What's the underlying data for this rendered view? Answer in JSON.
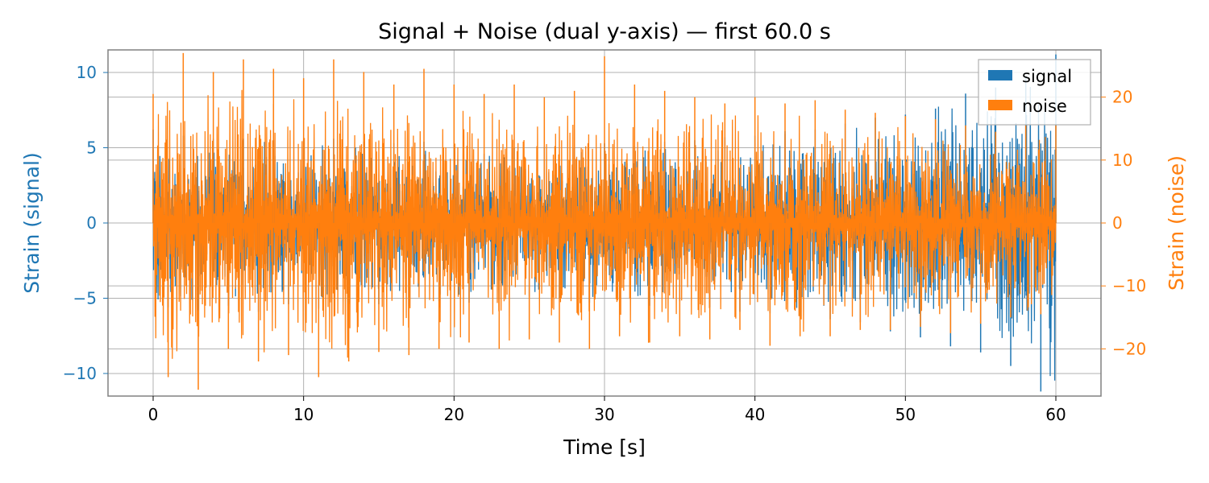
{
  "chart_data": {
    "type": "line",
    "title": "Signal + Noise (dual y-axis) — first 60.0 s",
    "xlabel": "Time [s]",
    "ylabel_left": "Strain (signal)",
    "ylabel_right": "Strain (noise)",
    "xlim": [
      -3,
      63
    ],
    "ylim_left": [
      -11.5,
      11.5
    ],
    "ylim_right": [
      -27.5,
      27.5
    ],
    "x_ticks": [
      0,
      10,
      20,
      30,
      40,
      50,
      60
    ],
    "x_tick_labels": [
      "0",
      "10",
      "20",
      "30",
      "40",
      "50",
      "60"
    ],
    "y_left_ticks": [
      -10,
      -5,
      0,
      5,
      10
    ],
    "y_left_tick_labels": [
      "−10",
      "−5",
      "0",
      "5",
      "10"
    ],
    "y_right_ticks": [
      -20,
      -10,
      0,
      10,
      20
    ],
    "y_right_tick_labels": [
      "−20",
      "−10",
      "0",
      "10",
      "20"
    ],
    "grid": true,
    "legend_position": "top-right",
    "series": [
      {
        "name": "signal",
        "axis": "left",
        "color": "#1f77b4",
        "x": [
          0,
          1,
          2,
          3,
          4,
          5,
          6,
          7,
          8,
          9,
          10,
          11,
          12,
          13,
          14,
          15,
          16,
          17,
          18,
          19,
          20,
          21,
          22,
          23,
          24,
          25,
          26,
          27,
          28,
          29,
          30,
          31,
          32,
          33,
          34,
          35,
          36,
          37,
          38,
          39,
          40,
          41,
          42,
          43,
          44,
          45,
          46,
          47,
          48,
          49,
          50,
          51,
          52,
          53,
          54,
          55,
          56,
          57,
          58,
          59,
          60
        ],
        "y": [
          6.2,
          -5.6,
          5.8,
          -5.8,
          5.6,
          -5.5,
          5.6,
          -5.9,
          5.5,
          -5.4,
          5.5,
          -5.7,
          5.6,
          -5.3,
          5.4,
          -5.4,
          5.3,
          -5.5,
          5.4,
          -5.2,
          5.2,
          -5.3,
          4.6,
          -5.1,
          5.0,
          -4.9,
          5.1,
          -5.0,
          5.0,
          -5.3,
          5.3,
          -5.0,
          5.1,
          -5.5,
          5.4,
          -5.2,
          5.5,
          -5.6,
          5.7,
          -5.9,
          5.8,
          -6.0,
          6.1,
          -6.2,
          6.2,
          -6.4,
          6.6,
          -6.6,
          7.0,
          -7.2,
          7.2,
          -7.6,
          7.6,
          -8.2,
          8.6,
          -8.6,
          9.0,
          -9.5,
          9.8,
          -11.2,
          11.2
        ],
        "envelope_upper": [
          6.2,
          6.0,
          5.9,
          5.8,
          5.7,
          5.7,
          5.6,
          5.6,
          5.5,
          5.5,
          5.5,
          5.5,
          5.5,
          5.4,
          5.4,
          5.4,
          5.3,
          5.3,
          5.3,
          5.2,
          5.2,
          5.2,
          5.1,
          5.1,
          5.1,
          5.1,
          5.1,
          5.1,
          5.1,
          5.2,
          5.2,
          5.3,
          5.3,
          5.4,
          5.4,
          5.5,
          5.5,
          5.6,
          5.7,
          5.8,
          5.9,
          6.0,
          6.1,
          6.2,
          6.3,
          6.4,
          6.6,
          6.8,
          7.0,
          7.2,
          7.4,
          7.6,
          7.9,
          8.2,
          8.5,
          8.8,
          9.1,
          9.4,
          9.8,
          10.5,
          11.2
        ]
      },
      {
        "name": "noise",
        "axis": "right",
        "color": "#ff7f0e",
        "x": [
          0,
          1,
          2,
          3,
          4,
          5,
          6,
          7,
          8,
          9,
          10,
          11,
          12,
          13,
          14,
          15,
          16,
          17,
          18,
          19,
          20,
          21,
          22,
          23,
          24,
          25,
          26,
          27,
          28,
          29,
          30,
          31,
          32,
          33,
          34,
          35,
          36,
          37,
          38,
          39,
          40,
          41,
          42,
          43,
          44,
          45,
          46,
          47,
          48,
          49,
          50,
          51,
          52,
          53,
          54,
          55,
          56,
          57,
          58,
          59,
          60
        ],
        "y": [
          20.5,
          -24.5,
          27.0,
          -26.5,
          24.0,
          -20.0,
          26.0,
          -22.0,
          24.5,
          -21.0,
          23.0,
          -24.5,
          26.0,
          -22.0,
          24.0,
          -20.5,
          22.0,
          -21.0,
          24.5,
          -20.0,
          22.0,
          -19.0,
          20.5,
          -20.0,
          22.0,
          -18.5,
          20.0,
          -19.0,
          21.0,
          -20.0,
          26.5,
          -18.0,
          22.0,
          -19.0,
          21.0,
          -18.0,
          20.0,
          -18.5,
          19.0,
          -17.0,
          20.0,
          -19.5,
          19.0,
          -18.0,
          19.5,
          -18.0,
          18.0,
          -17.0,
          17.5,
          -17.0,
          17.0,
          -16.5,
          16.5,
          -17.5,
          15.5,
          -16.0,
          14.5,
          -15.0,
          15.5,
          -14.5,
          15.5
        ],
        "envelope_upper": [
          25.0,
          24.8,
          24.6,
          24.4,
          24.2,
          24.0,
          23.8,
          23.6,
          23.4,
          23.2,
          23.0,
          22.8,
          22.6,
          22.4,
          22.2,
          22.0,
          21.8,
          21.6,
          21.4,
          21.2,
          21.0,
          20.8,
          20.6,
          20.4,
          20.2,
          20.0,
          19.9,
          19.8,
          19.7,
          19.6,
          19.5,
          19.4,
          19.3,
          19.2,
          19.1,
          19.0,
          18.9,
          18.8,
          18.7,
          18.6,
          18.5,
          18.3,
          18.1,
          17.9,
          17.7,
          17.5,
          17.3,
          17.1,
          16.9,
          16.7,
          16.5,
          16.3,
          16.1,
          15.9,
          15.7,
          15.5,
          15.3,
          15.1,
          14.9,
          14.7,
          14.5
        ]
      }
    ]
  }
}
